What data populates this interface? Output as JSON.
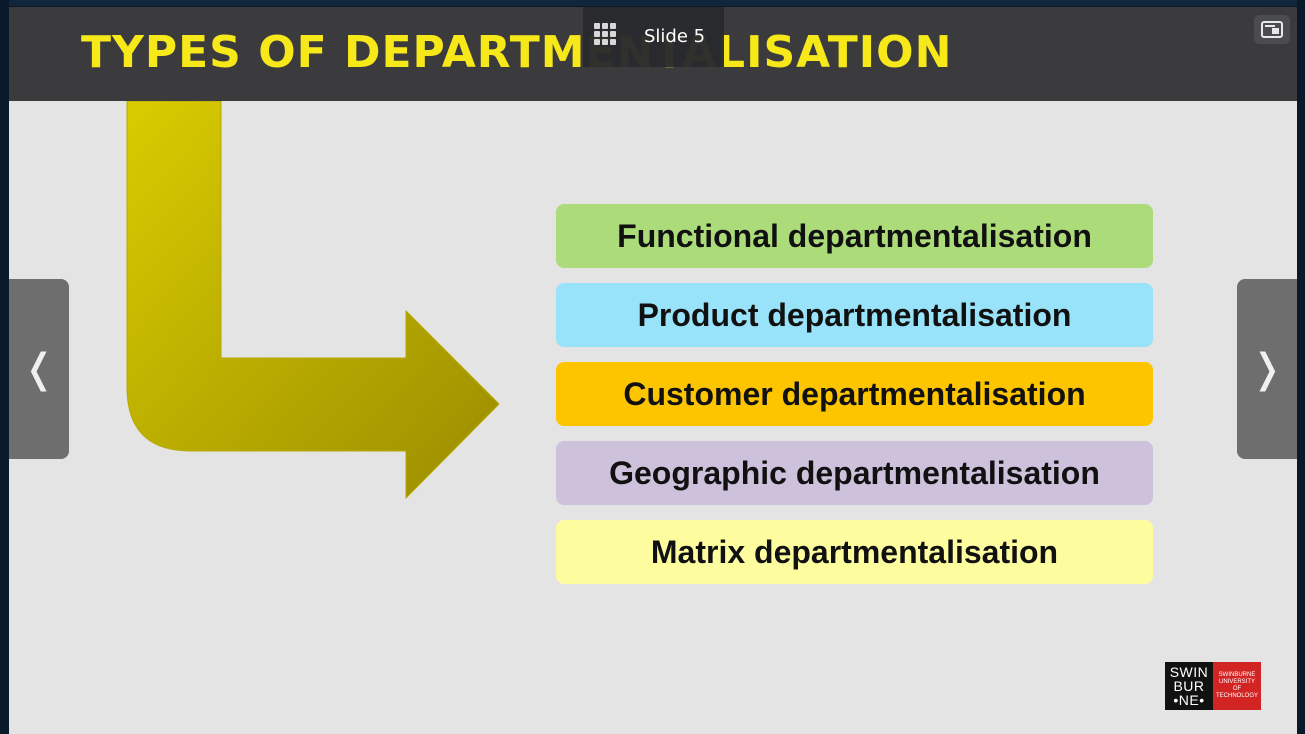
{
  "slide": {
    "title": "TYPES OF DEPARTMENTALISATION",
    "boxes": [
      {
        "label": "Functional departmentalisation",
        "color": "#acdc7a"
      },
      {
        "label": "Product departmentalisation",
        "color": "#98e2fa"
      },
      {
        "label": "Customer departmentalisation",
        "color": "#fdc400"
      },
      {
        "label": "Geographic departmentalisation",
        "color": "#cdc1dc"
      },
      {
        "label": "Matrix departmentalisation",
        "color": "#fdfda0"
      }
    ],
    "logo": {
      "wordmark_lines": [
        "SWIN",
        "BUR",
        "•NE•"
      ],
      "text": "SWINBURNE UNIVERSITY OF TECHNOLOGY"
    }
  },
  "viewer": {
    "slide_label": "Slide 5",
    "prev_glyph": "❬",
    "next_glyph": "❭"
  },
  "colors": {
    "title_band": "#3b3b3d",
    "title_text": "#f7e81a",
    "slide_bg": "#e4e4e4",
    "arrow_gradient": [
      "#d9cc00",
      "#9a8c00"
    ]
  },
  "icons": {
    "grid": "grid-icon",
    "fullscreen": "screen-toggle-icon",
    "prev": "chevron-left-icon",
    "next": "chevron-right-icon"
  }
}
